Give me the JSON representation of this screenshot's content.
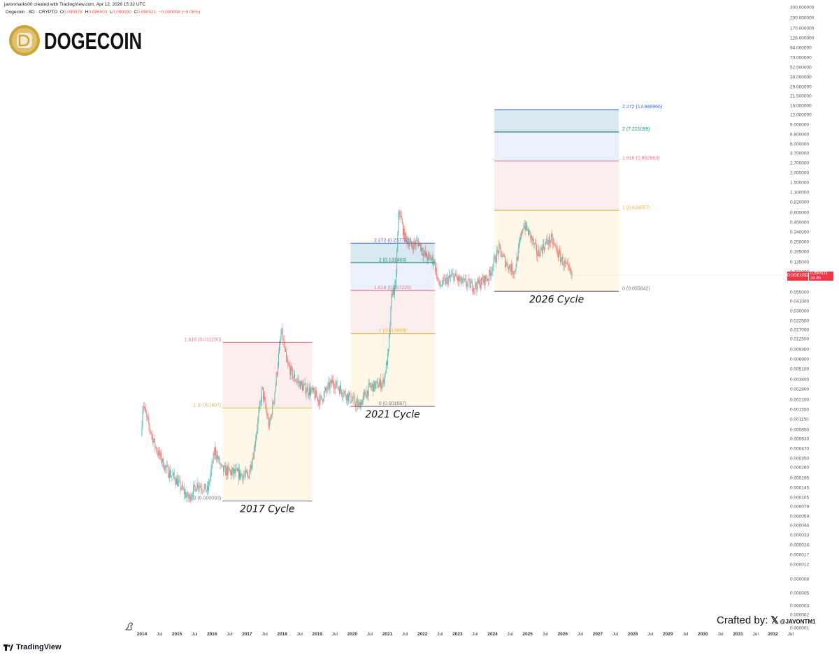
{
  "header": {
    "attribution": "javonmarks00 created with TradingView.com, Apr 12, 2026 15:32 UTC",
    "symbol": "Dogecoin · 8D · CRYPTO",
    "open_label": "O",
    "open": "0.090578",
    "high_label": "H",
    "high": "0.096003",
    "low_label": "L",
    "low": "0.090090",
    "close_label": "C",
    "close": "0.090521",
    "change": "−0.000058 (−0.06%)"
  },
  "logo": {
    "text": "DOGECOIN",
    "coin_color": "#c9a63a"
  },
  "price_label": {
    "symbol": "DOGEUSD",
    "price": "0.090521",
    "countdown": "2d 8h",
    "color": "#f23645"
  },
  "footer": {
    "crafted_by": "Crafted by:",
    "x_icon": "x-logo-icon",
    "handle": "@JAVONTM1",
    "brand": "TradingView"
  },
  "colors": {
    "up": "#26a69a",
    "down": "#ef5350",
    "level_0": "#787b86",
    "level_1": "#e0c05a",
    "level_1618": "#e57a8a",
    "level_2": "#26897a",
    "level_2272": "#4a6cd4"
  },
  "chart_data": {
    "type": "candlestick",
    "scale": "log",
    "interval": "8D",
    "ylim": [
      1e-06,
      300
    ],
    "y_ticks": [
      "300.000000",
      "230.000000",
      "170.000000",
      "126.000000",
      "94.000000",
      "70.000000",
      "52.000000",
      "39.000000",
      "29.000000",
      "21.500000",
      "16.000000",
      "12.000000",
      "9.000000",
      "6.800000",
      "5.000000",
      "3.700000",
      "2.700000",
      "2.000000",
      "1.500000",
      "1.100000",
      "0.820000",
      "0.600000",
      "0.450000",
      "0.340000",
      "0.250000",
      "0.185000",
      "0.135000",
      "0.101000",
      "0.055000",
      "0.041000",
      "0.030000",
      "0.022500",
      "0.017000",
      "0.012500",
      "0.009300",
      "0.006900",
      "0.005100",
      "0.003800",
      "0.002800",
      "0.002100",
      "0.001550",
      "0.001150",
      "0.000850",
      "0.000630",
      "0.000470",
      "0.000350",
      "0.000260",
      "0.000195",
      "0.000145",
      "0.000105",
      "0.000079",
      "0.000059",
      "0.000044",
      "0.000033",
      "0.000024",
      "0.000017",
      "0.000012",
      "0.000008",
      "0.000005",
      "0.000003",
      "0.000002",
      "0.000001"
    ],
    "x_ticks": [
      "2014",
      "Jul",
      "2015",
      "Jul",
      "2016",
      "Jul",
      "2017",
      "Jul",
      "2018",
      "Jul",
      "2019",
      "Jul",
      "2020",
      "Jul",
      "2021",
      "Jul",
      "2022",
      "Jul",
      "2023",
      "Jul",
      "2024",
      "Jul",
      "2025",
      "Jul",
      "2026",
      "Jul",
      "2027",
      "Jul",
      "2028",
      "Jul",
      "2029",
      "Jul",
      "2030",
      "Jul",
      "2031",
      "Jul",
      "2032",
      "Jul"
    ],
    "xlim": [
      2014.0,
      2032.75
    ],
    "price_path": [
      [
        2014.0,
        0.0007
      ],
      [
        2014.05,
        0.0019
      ],
      [
        2014.15,
        0.0012
      ],
      [
        2014.4,
        0.0005
      ],
      [
        2014.7,
        0.00025
      ],
      [
        2015.0,
        0.00018
      ],
      [
        2015.35,
        0.0001
      ],
      [
        2015.6,
        0.00016
      ],
      [
        2015.9,
        0.00013
      ],
      [
        2016.1,
        0.00045
      ],
      [
        2016.3,
        0.00024
      ],
      [
        2016.7,
        0.00022
      ],
      [
        2017.05,
        0.0002
      ],
      [
        2017.2,
        0.0004
      ],
      [
        2017.45,
        0.0028
      ],
      [
        2017.65,
        0.0009
      ],
      [
        2017.8,
        0.0024
      ],
      [
        2018.0,
        0.016
      ],
      [
        2018.15,
        0.006
      ],
      [
        2018.35,
        0.004
      ],
      [
        2018.6,
        0.003
      ],
      [
        2018.9,
        0.0025
      ],
      [
        2019.1,
        0.002
      ],
      [
        2019.45,
        0.0035
      ],
      [
        2019.8,
        0.0025
      ],
      [
        2020.2,
        0.0017
      ],
      [
        2020.5,
        0.0029
      ],
      [
        2020.9,
        0.0034
      ],
      [
        2021.05,
        0.008
      ],
      [
        2021.15,
        0.055
      ],
      [
        2021.25,
        0.06
      ],
      [
        2021.35,
        0.68
      ],
      [
        2021.5,
        0.3
      ],
      [
        2021.7,
        0.22
      ],
      [
        2021.9,
        0.25
      ],
      [
        2022.1,
        0.16
      ],
      [
        2022.35,
        0.14
      ],
      [
        2022.5,
        0.065
      ],
      [
        2022.9,
        0.09
      ],
      [
        2023.1,
        0.075
      ],
      [
        2023.5,
        0.065
      ],
      [
        2023.9,
        0.085
      ],
      [
        2024.2,
        0.2
      ],
      [
        2024.4,
        0.13
      ],
      [
        2024.65,
        0.1
      ],
      [
        2024.9,
        0.43
      ],
      [
        2025.1,
        0.3
      ],
      [
        2025.3,
        0.17
      ],
      [
        2025.55,
        0.24
      ],
      [
        2025.7,
        0.27
      ],
      [
        2025.9,
        0.17
      ],
      [
        2026.1,
        0.12
      ],
      [
        2026.28,
        0.09
      ]
    ],
    "fib_extensions": [
      {
        "cycle": "2017 Cycle",
        "start": 2016.3,
        "end": 2018.85,
        "levels": [
          {
            "ratio": "0",
            "price": 9.3e-05,
            "label": "0 (0.000093)"
          },
          {
            "ratio": "1",
            "price": 0.001607,
            "label": "1 (0.001607)"
          },
          {
            "ratio": "1.618",
            "price": 0.01123,
            "label": "1.618 (0.011230)"
          }
        ]
      },
      {
        "cycle": "2021 Cycle",
        "start": 2019.95,
        "end": 2022.35,
        "levels": [
          {
            "ratio": "0",
            "price": 0.001687,
            "label": "0 (0.001687)"
          },
          {
            "ratio": "1",
            "price": 0.014889,
            "label": "1 (0.014889)"
          },
          {
            "ratio": "1.618",
            "price": 0.057226,
            "label": "1.618 (0.057226)"
          },
          {
            "ratio": "2",
            "price": 0.131483,
            "label": "2 (0.131483)"
          },
          {
            "ratio": "2.272",
            "price": 0.237763,
            "label": "2.272 (0.237763)"
          }
        ]
      },
      {
        "cycle": "2026 Cycle",
        "start": 2024.05,
        "end": 2027.6,
        "levels": [
          {
            "ratio": "0",
            "price": 0.055842,
            "label": "0 (0.055842)"
          },
          {
            "ratio": "1",
            "price": 0.635057,
            "label": "1 (0.635057)"
          },
          {
            "ratio": "1.618",
            "price": 2.852863,
            "label": "1.618 (2.852863)"
          },
          {
            "ratio": "2",
            "price": 7.221099,
            "label": "2 (7.221099)"
          },
          {
            "ratio": "2.272",
            "price": 13.988966,
            "label": "2.272 (13.988966)"
          }
        ]
      }
    ]
  }
}
